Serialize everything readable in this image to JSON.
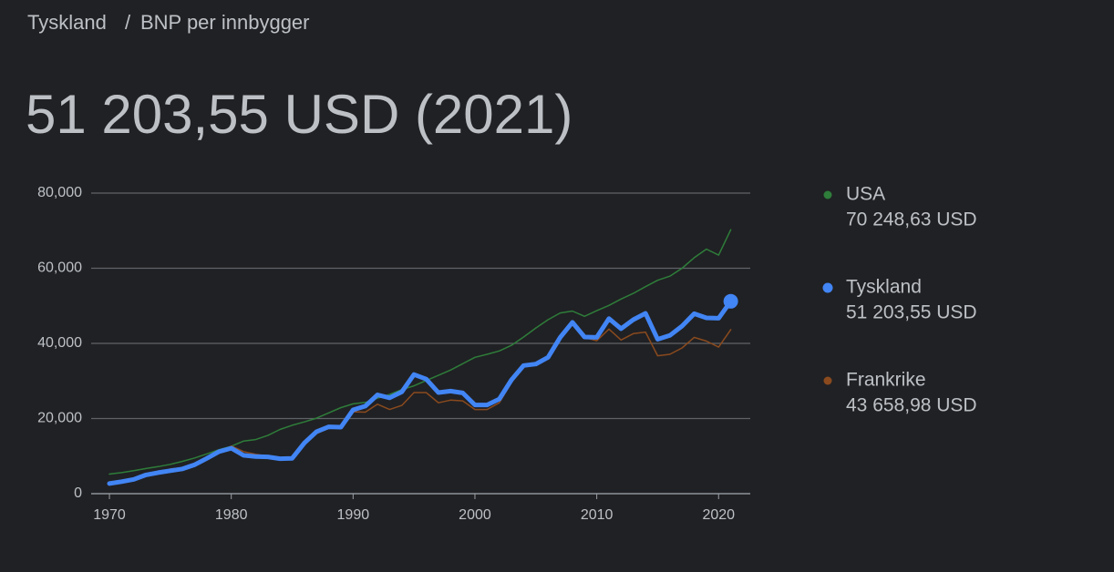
{
  "breadcrumb": {
    "link": "Tyskland",
    "separator": "/",
    "current": "BNP per innbygger"
  },
  "headline": "51 203,55 USD (2021)",
  "chart_data": {
    "type": "line",
    "x": [
      1970,
      1971,
      1972,
      1973,
      1974,
      1975,
      1976,
      1977,
      1978,
      1979,
      1980,
      1981,
      1982,
      1983,
      1984,
      1985,
      1986,
      1987,
      1988,
      1989,
      1990,
      1991,
      1992,
      1993,
      1994,
      1995,
      1996,
      1997,
      1998,
      1999,
      2000,
      2001,
      2002,
      2003,
      2004,
      2005,
      2006,
      2007,
      2008,
      2009,
      2010,
      2011,
      2012,
      2013,
      2014,
      2015,
      2016,
      2017,
      2018,
      2019,
      2020,
      2021
    ],
    "xlim": [
      1968.5,
      2022.6
    ],
    "xticks": [
      1970,
      1980,
      1990,
      2000,
      2010,
      2020
    ],
    "ylim": [
      0,
      80000
    ],
    "yticks": [
      0,
      {
        "value": 20000,
        "label": "20,000"
      },
      {
        "value": 40000,
        "label": "40,000"
      },
      {
        "value": 60000,
        "label": "60,000"
      },
      {
        "value": 80000,
        "label": "80,000"
      }
    ],
    "grid": true,
    "legend": "right",
    "series": [
      {
        "name": "USA",
        "color": "#2e7d3a",
        "legend_value": "70 248,63 USD",
        "values": [
          5200,
          5600,
          6100,
          6700,
          7200,
          7800,
          8600,
          9500,
          10600,
          11700,
          12600,
          14000,
          14400,
          15500,
          17100,
          18200,
          19100,
          20100,
          21500,
          22900,
          23900,
          24300,
          25400,
          26400,
          27700,
          28700,
          30100,
          31500,
          32900,
          34600,
          36300,
          37100,
          38000,
          39500,
          41700,
          44100,
          46300,
          48100,
          48600,
          47200,
          48700,
          50100,
          51800,
          53300,
          55100,
          56800,
          57900,
          60000,
          62800,
          65100,
          63500,
          70248.63
        ]
      },
      {
        "name": "Frankrike",
        "color": "#8a4a1e",
        "legend_value": "43 658,98 USD",
        "values": [
          2900,
          3100,
          3800,
          4900,
          5300,
          6600,
          6800,
          7500,
          9200,
          10900,
          12700,
          11200,
          10500,
          10000,
          9400,
          9800,
          13400,
          16000,
          17400,
          17700,
          21800,
          21700,
          23800,
          22400,
          23500,
          26900,
          26900,
          24200,
          24900,
          24700,
          22400,
          22400,
          24200,
          29600,
          33800,
          34800,
          36500,
          41600,
          45500,
          41600,
          40700,
          43800,
          40900,
          42600,
          43000,
          36700,
          37100,
          38800,
          41600,
          40600,
          39000,
          43658.98
        ]
      },
      {
        "name": "Tyskland",
        "color": "#4285f4",
        "legend_value": "51 203,55 USD",
        "values": [
          2700,
          3200,
          3800,
          5000,
          5600,
          6100,
          6600,
          7700,
          9400,
          11200,
          12100,
          10200,
          9900,
          9800,
          9300,
          9400,
          13500,
          16500,
          17800,
          17700,
          22300,
          23300,
          26300,
          25500,
          27100,
          31700,
          30500,
          26900,
          27300,
          26800,
          23600,
          23600,
          25200,
          30300,
          34100,
          34500,
          36300,
          41600,
          45600,
          41700,
          41600,
          46600,
          43900,
          46300,
          48000,
          41100,
          42100,
          44600,
          47900,
          46800,
          46700,
          51203.55
        ]
      }
    ]
  }
}
